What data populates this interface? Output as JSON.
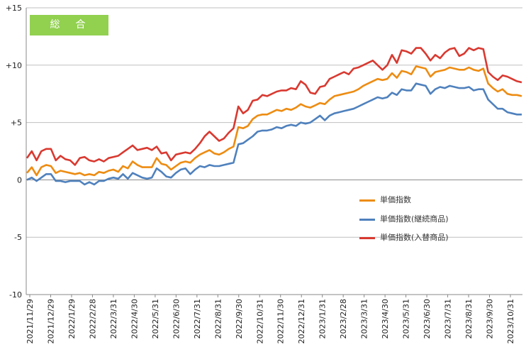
{
  "badge": {
    "label": "総　合"
  },
  "chart_data": {
    "type": "line",
    "title": "総　合",
    "xlabel": "",
    "ylabel": "",
    "ylim": [
      -10,
      15
    ],
    "yticks": [
      "+15",
      "+10",
      "+5",
      "0",
      "-5",
      "-10"
    ],
    "ytick_values": [
      15,
      10,
      5,
      0,
      -5,
      -10
    ],
    "grid": "horizontal",
    "legend_position": "right-center",
    "xtick_labels": [
      "2021/11/29",
      "2021/12/29",
      "2022/1/29",
      "2022/2/28",
      "2022/3/31",
      "2022/4/30",
      "2022/5/31",
      "2022/6/30",
      "2022/7/31",
      "2022/8/31",
      "2022/9/30",
      "2022/10/31",
      "2022/11/30",
      "2022/12/31",
      "2023/1/31",
      "2023/2/28",
      "2023/3/31",
      "2023/4/30",
      "2023/5/31",
      "2023/6/30",
      "2023/7/31",
      "2023/8/31",
      "2023/9/30",
      "2023/10/31"
    ],
    "series": [
      {
        "name": "単価指数",
        "color": "#ed8c12",
        "values": [
          0.6,
          1.1,
          0.4,
          1.1,
          1.3,
          1.2,
          0.6,
          0.8,
          0.7,
          0.6,
          0.5,
          0.6,
          0.4,
          0.5,
          0.4,
          0.7,
          0.6,
          0.8,
          0.9,
          0.7,
          1.2,
          1.0,
          1.6,
          1.3,
          1.1,
          1.1,
          1.1,
          1.9,
          1.4,
          1.3,
          0.9,
          1.2,
          1.5,
          1.6,
          1.5,
          1.9,
          2.2,
          2.4,
          2.6,
          2.3,
          2.2,
          2.4,
          2.7,
          2.9,
          4.6,
          4.5,
          4.7,
          5.3,
          5.6,
          5.7,
          5.7,
          5.9,
          6.1,
          6.0,
          6.2,
          6.1,
          6.3,
          6.6,
          6.4,
          6.3,
          6.5,
          6.7,
          6.6,
          7.0,
          7.3,
          7.4,
          7.5,
          7.6,
          7.7,
          7.9,
          8.2,
          8.4,
          8.6,
          8.8,
          8.7,
          8.8,
          9.3,
          8.9,
          9.5,
          9.4,
          9.2,
          9.9,
          9.8,
          9.7,
          9.0,
          9.4,
          9.5,
          9.6,
          9.8,
          9.7,
          9.6,
          9.6,
          9.8,
          9.6,
          9.5,
          9.7,
          8.4,
          8.0,
          7.7,
          7.9,
          7.5,
          7.4,
          7.4,
          7.3
        ]
      },
      {
        "name": "単価指数(継続商品)",
        "color": "#4f81bd",
        "values": [
          0.0,
          0.2,
          -0.1,
          0.2,
          0.5,
          0.5,
          -0.1,
          -0.1,
          -0.2,
          -0.1,
          -0.1,
          -0.1,
          -0.4,
          -0.2,
          -0.4,
          -0.1,
          -0.1,
          0.1,
          0.2,
          0.1,
          0.5,
          0.1,
          0.6,
          0.4,
          0.2,
          0.1,
          0.2,
          1.0,
          0.7,
          0.3,
          0.2,
          0.6,
          0.9,
          1.0,
          0.5,
          0.9,
          1.2,
          1.1,
          1.3,
          1.2,
          1.2,
          1.3,
          1.4,
          1.5,
          3.1,
          3.2,
          3.5,
          3.8,
          4.2,
          4.3,
          4.3,
          4.4,
          4.6,
          4.5,
          4.7,
          4.8,
          4.7,
          5.0,
          4.9,
          5.0,
          5.3,
          5.6,
          5.2,
          5.6,
          5.8,
          5.9,
          6.0,
          6.1,
          6.2,
          6.4,
          6.6,
          6.8,
          7.0,
          7.2,
          7.1,
          7.2,
          7.6,
          7.4,
          7.9,
          7.8,
          7.8,
          8.4,
          8.3,
          8.2,
          7.5,
          7.9,
          8.1,
          8.0,
          8.2,
          8.1,
          8.0,
          8.0,
          8.1,
          7.8,
          7.9,
          7.9,
          7.0,
          6.6,
          6.2,
          6.2,
          5.9,
          5.8,
          5.7,
          5.7
        ]
      },
      {
        "name": "単価指数(入替商品)",
        "color": "#d93930",
        "values": [
          1.9,
          2.5,
          1.7,
          2.5,
          2.7,
          2.7,
          1.7,
          2.1,
          1.8,
          1.7,
          1.3,
          1.9,
          2.0,
          1.7,
          1.6,
          1.8,
          1.6,
          1.9,
          2.0,
          2.1,
          2.4,
          2.7,
          3.0,
          2.6,
          2.7,
          2.8,
          2.6,
          2.9,
          2.3,
          2.4,
          1.7,
          2.2,
          2.3,
          2.4,
          2.3,
          2.7,
          3.2,
          3.8,
          4.2,
          3.8,
          3.4,
          3.6,
          4.1,
          4.5,
          6.4,
          5.8,
          6.1,
          6.9,
          7.0,
          7.4,
          7.3,
          7.5,
          7.7,
          7.8,
          7.8,
          8.0,
          7.9,
          8.6,
          8.3,
          7.6,
          7.5,
          8.1,
          8.2,
          8.8,
          9.0,
          9.2,
          9.4,
          9.2,
          9.7,
          9.8,
          10.0,
          10.2,
          10.4,
          10.0,
          9.6,
          10.0,
          10.9,
          10.2,
          11.3,
          11.2,
          11.0,
          11.5,
          11.5,
          11.0,
          10.4,
          10.9,
          10.6,
          11.1,
          11.4,
          11.5,
          10.8,
          11.0,
          11.5,
          11.3,
          11.5,
          11.4,
          9.4,
          9.0,
          8.7,
          9.1,
          9.0,
          8.8,
          8.6,
          8.5
        ]
      }
    ]
  }
}
